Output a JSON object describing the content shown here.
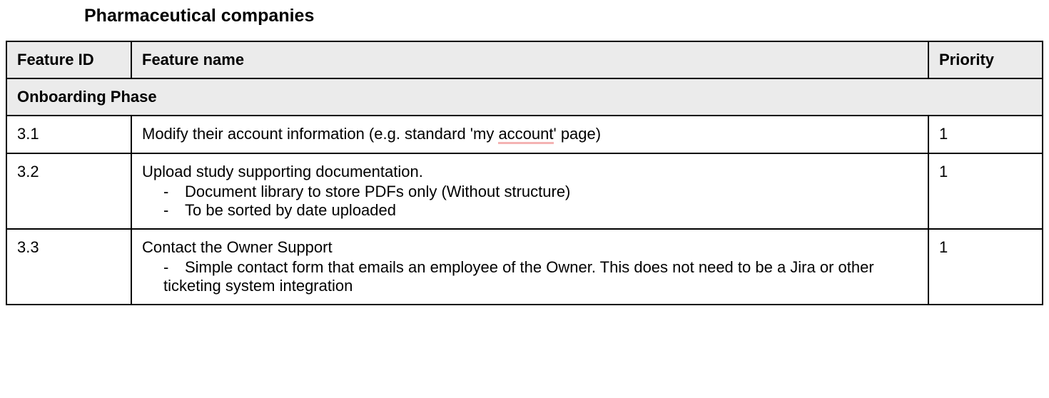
{
  "title": "Pharmaceutical companies",
  "table": {
    "columns": [
      "Feature ID",
      "Feature name",
      "Priority"
    ],
    "section": "Onboarding Phase",
    "rows": [
      {
        "id": "3.1",
        "name_pre": "Modify their account information (e.g. standard 'my ",
        "name_underlined": "account",
        "name_post": "' page)",
        "bullets": [],
        "priority": "1"
      },
      {
        "id": "3.2",
        "name_pre": "Upload study supporting documentation.",
        "name_underlined": "",
        "name_post": "",
        "bullets": [
          "Document library to store PDFs only (Without structure)",
          "To be sorted by date uploaded"
        ],
        "priority": "1"
      },
      {
        "id": "3.3",
        "name_pre": "Contact the Owner Support",
        "name_underlined": "",
        "name_post": "",
        "bullets": [
          "Simple contact form that emails an employee of the Owner. This does not need to be a Jira or other ticketing system integration"
        ],
        "priority": "1"
      }
    ],
    "header_bg": "#ebebeb",
    "border_color": "#000000",
    "underline_color": "#f4b3b3",
    "font_size_pt": 17,
    "title_font_size_pt": 19
  }
}
